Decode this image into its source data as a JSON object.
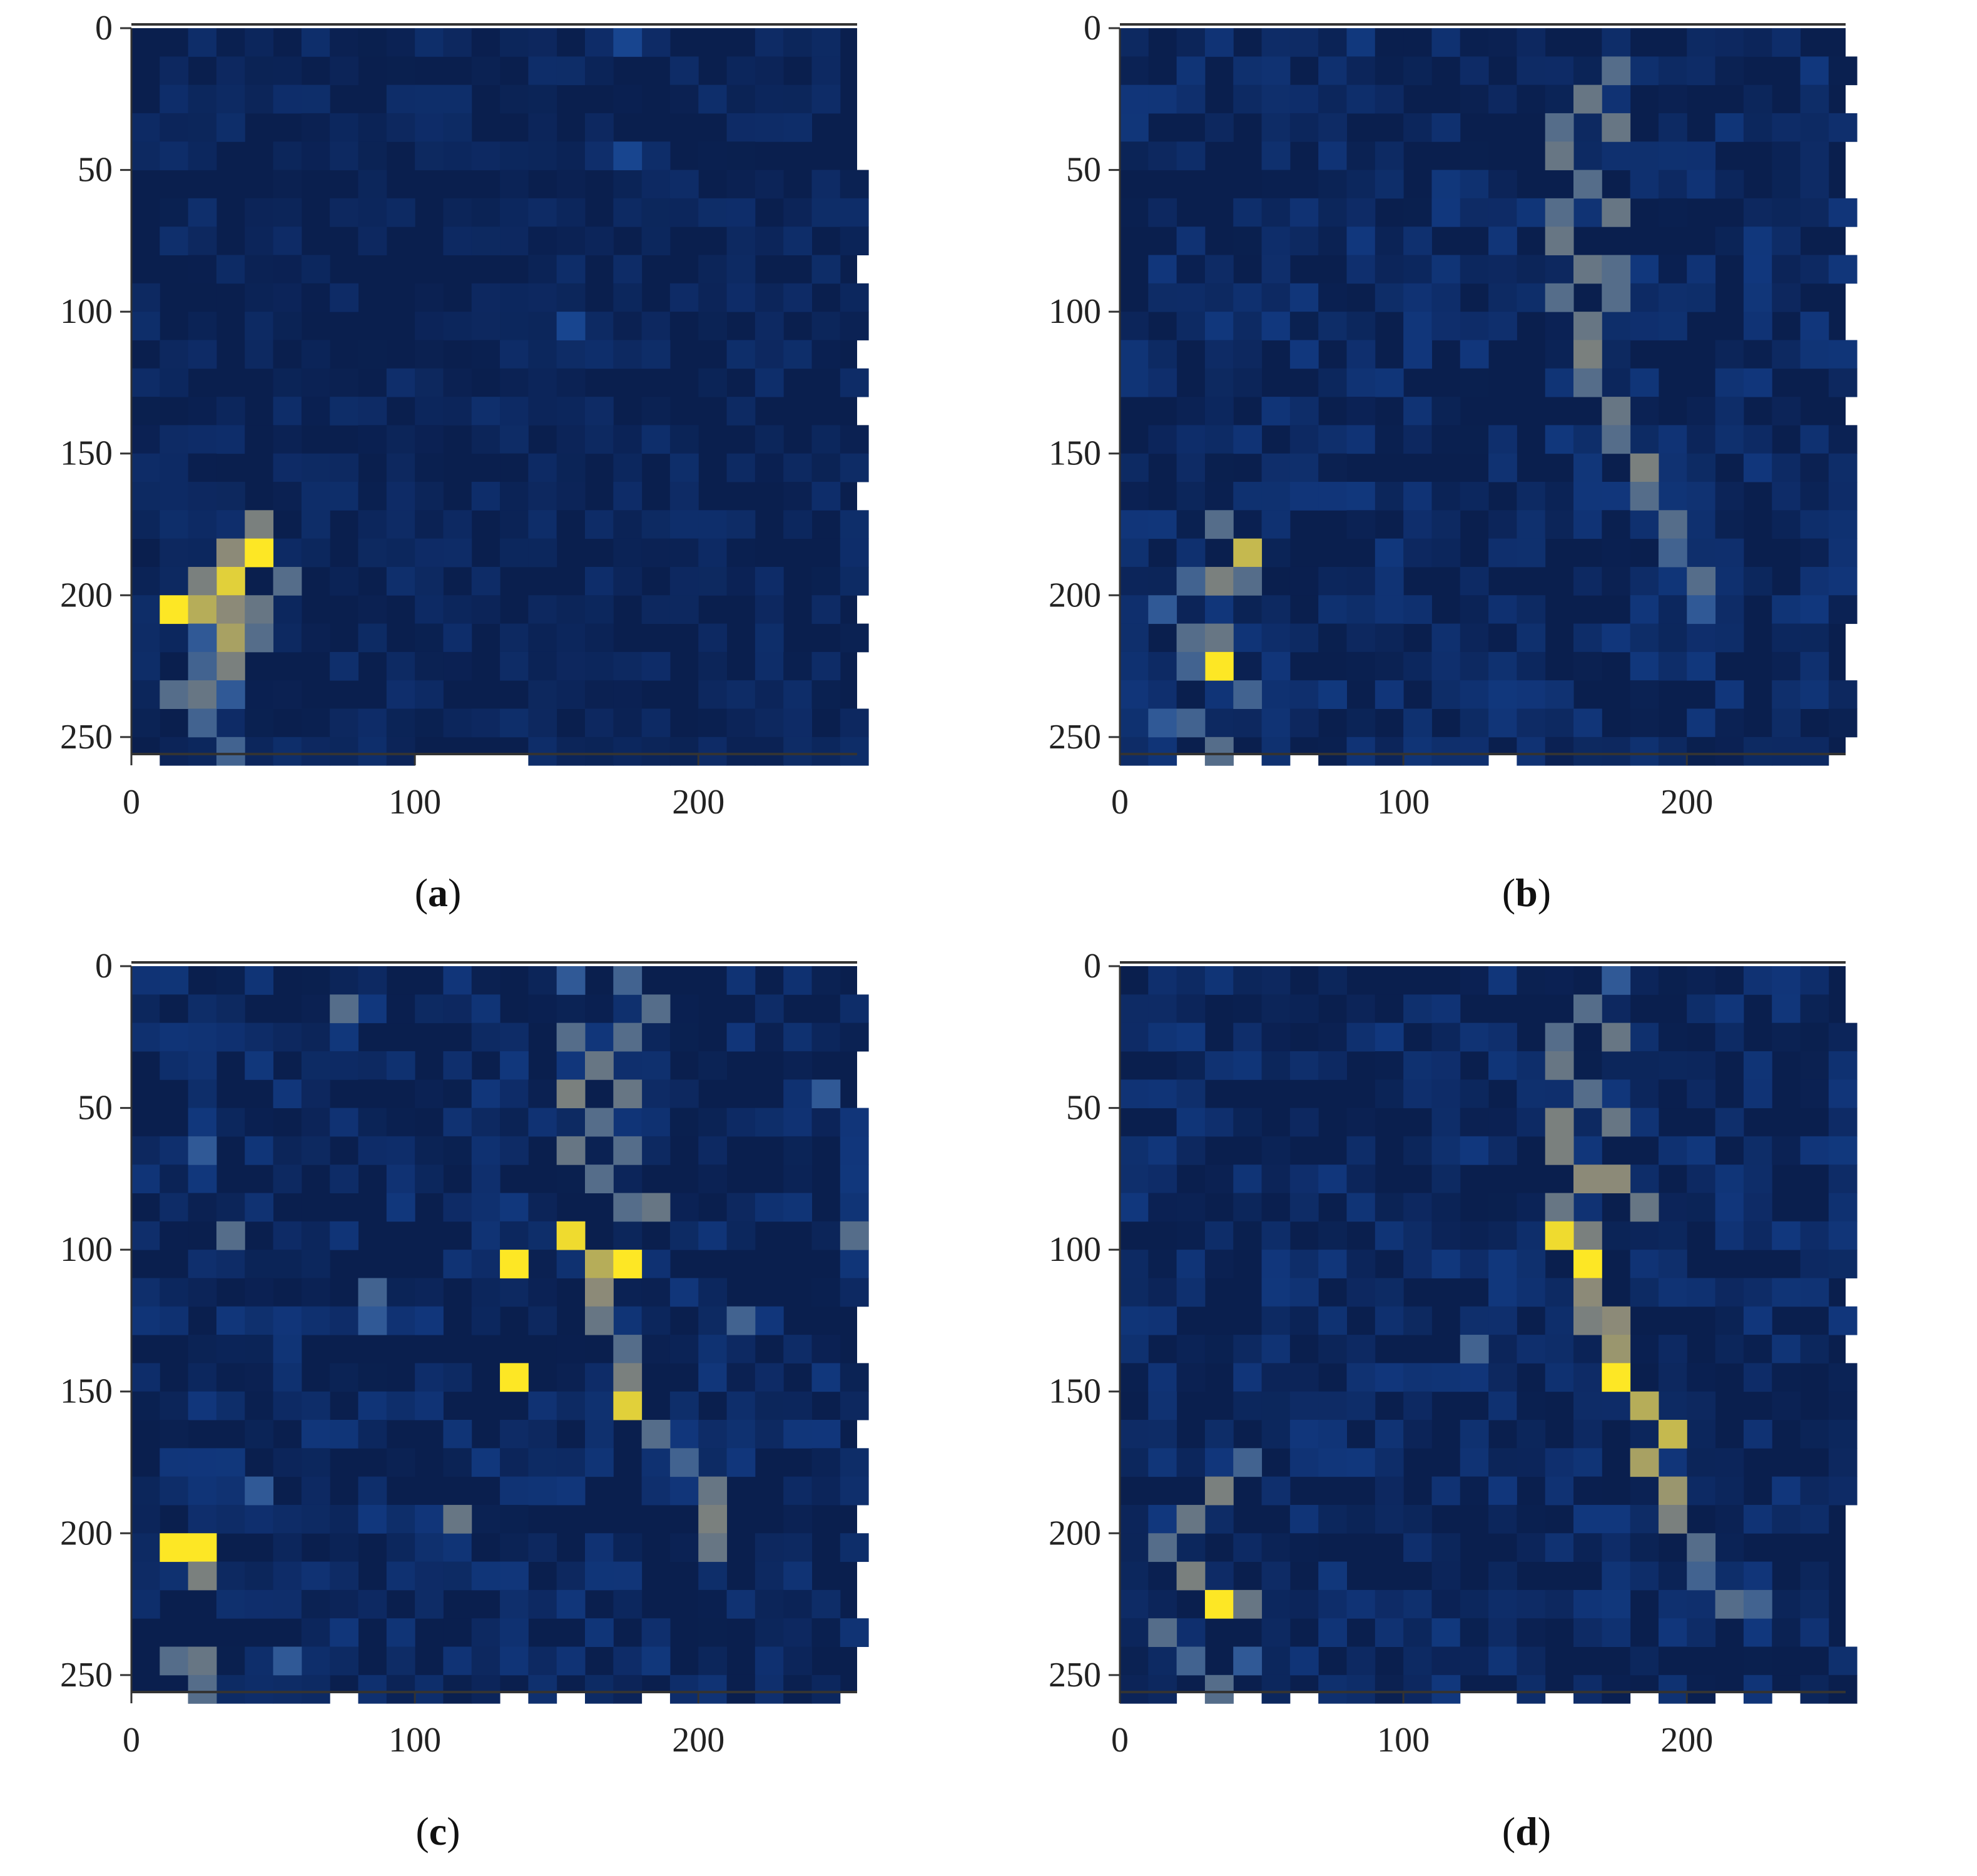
{
  "colors": {
    "background_dark": "#0a1f4e",
    "background_blue": "#123a82",
    "mid_blue": "#1d4f9c",
    "gray_yellow": "#8c8a78",
    "bright_yellow": "#fde725"
  },
  "chart_data": [
    {
      "type": "heatmap",
      "panel": "a",
      "xlim": [
        0,
        256
      ],
      "ylim": [
        256,
        0
      ],
      "xticks": [
        "0",
        "100",
        "200"
      ],
      "yticks": [
        "0",
        "50",
        "100",
        "150",
        "200",
        "250"
      ],
      "cell_size": 10,
      "hot_cells": [
        [
          40,
          170,
          0.55
        ],
        [
          30,
          180,
          0.6
        ],
        [
          40,
          180,
          1.0
        ],
        [
          50,
          190,
          0.45
        ],
        [
          30,
          190,
          0.9
        ],
        [
          20,
          190,
          0.55
        ],
        [
          10,
          200,
          1.0
        ],
        [
          20,
          200,
          0.75
        ],
        [
          30,
          200,
          0.6
        ],
        [
          40,
          200,
          0.5
        ],
        [
          30,
          210,
          0.7
        ],
        [
          40,
          210,
          0.45
        ],
        [
          20,
          210,
          0.35
        ],
        [
          30,
          220,
          0.55
        ],
        [
          20,
          220,
          0.4
        ],
        [
          10,
          230,
          0.45
        ],
        [
          20,
          230,
          0.5
        ],
        [
          30,
          230,
          0.35
        ],
        [
          20,
          240,
          0.4
        ],
        [
          30,
          250,
          0.4
        ],
        [
          170,
          0,
          0.15
        ],
        [
          170,
          40,
          0.15
        ],
        [
          150,
          100,
          0.15
        ]
      ]
    },
    {
      "type": "heatmap",
      "panel": "b",
      "xlim": [
        0,
        256
      ],
      "ylim": [
        256,
        0
      ],
      "xticks": [
        "0",
        "100",
        "200"
      ],
      "yticks": [
        "0",
        "50",
        "100",
        "150",
        "200",
        "250"
      ],
      "cell_size": 10,
      "hot_cells": [
        [
          170,
          10,
          0.45
        ],
        [
          160,
          20,
          0.5
        ],
        [
          150,
          30,
          0.45
        ],
        [
          170,
          30,
          0.5
        ],
        [
          150,
          40,
          0.5
        ],
        [
          160,
          50,
          0.45
        ],
        [
          150,
          60,
          0.45
        ],
        [
          170,
          60,
          0.5
        ],
        [
          150,
          70,
          0.5
        ],
        [
          160,
          80,
          0.5
        ],
        [
          170,
          80,
          0.45
        ],
        [
          150,
          90,
          0.45
        ],
        [
          160,
          100,
          0.5
        ],
        [
          170,
          90,
          0.45
        ],
        [
          160,
          110,
          0.55
        ],
        [
          160,
          120,
          0.45
        ],
        [
          170,
          130,
          0.5
        ],
        [
          170,
          140,
          0.45
        ],
        [
          180,
          150,
          0.55
        ],
        [
          180,
          160,
          0.45
        ],
        [
          190,
          170,
          0.45
        ],
        [
          190,
          180,
          0.4
        ],
        [
          200,
          190,
          0.45
        ],
        [
          200,
          200,
          0.35
        ],
        [
          30,
          170,
          0.45
        ],
        [
          40,
          180,
          0.8
        ],
        [
          30,
          190,
          0.55
        ],
        [
          20,
          190,
          0.4
        ],
        [
          40,
          190,
          0.45
        ],
        [
          10,
          200,
          0.35
        ],
        [
          20,
          210,
          0.45
        ],
        [
          30,
          210,
          0.5
        ],
        [
          30,
          220,
          1.0
        ],
        [
          20,
          220,
          0.4
        ],
        [
          40,
          230,
          0.4
        ],
        [
          10,
          240,
          0.35
        ],
        [
          20,
          240,
          0.4
        ],
        [
          30,
          250,
          0.45
        ]
      ]
    },
    {
      "type": "heatmap",
      "panel": "c",
      "xlim": [
        0,
        256
      ],
      "ylim": [
        256,
        0
      ],
      "xticks": [
        "0",
        "100",
        "200"
      ],
      "yticks": [
        "0",
        "50",
        "100",
        "150",
        "200",
        "250"
      ],
      "cell_size": 10,
      "hot_cells": [
        [
          150,
          0,
          0.35
        ],
        [
          170,
          0,
          0.4
        ],
        [
          180,
          10,
          0.45
        ],
        [
          150,
          20,
          0.45
        ],
        [
          170,
          20,
          0.45
        ],
        [
          160,
          30,
          0.5
        ],
        [
          150,
          40,
          0.55
        ],
        [
          170,
          40,
          0.5
        ],
        [
          160,
          50,
          0.45
        ],
        [
          150,
          60,
          0.5
        ],
        [
          170,
          60,
          0.45
        ],
        [
          160,
          70,
          0.45
        ],
        [
          180,
          80,
          0.5
        ],
        [
          170,
          80,
          0.45
        ],
        [
          150,
          90,
          0.95
        ],
        [
          160,
          100,
          0.75
        ],
        [
          170,
          100,
          1.0
        ],
        [
          160,
          110,
          0.6
        ],
        [
          160,
          120,
          0.5
        ],
        [
          170,
          130,
          0.45
        ],
        [
          170,
          140,
          0.55
        ],
        [
          170,
          150,
          0.9
        ],
        [
          180,
          160,
          0.45
        ],
        [
          190,
          170,
          0.4
        ],
        [
          200,
          180,
          0.5
        ],
        [
          200,
          190,
          0.55
        ],
        [
          200,
          200,
          0.5
        ],
        [
          130,
          100,
          1.0
        ],
        [
          130,
          140,
          1.0
        ],
        [
          70,
          10,
          0.45
        ],
        [
          80,
          110,
          0.4
        ],
        [
          80,
          120,
          0.35
        ],
        [
          110,
          190,
          0.5
        ],
        [
          30,
          90,
          0.45
        ],
        [
          20,
          60,
          0.35
        ],
        [
          250,
          90,
          0.45
        ],
        [
          210,
          120,
          0.4
        ],
        [
          240,
          40,
          0.35
        ],
        [
          10,
          200,
          1.0
        ],
        [
          20,
          200,
          1.0
        ],
        [
          20,
          210,
          0.55
        ],
        [
          10,
          240,
          0.45
        ],
        [
          20,
          240,
          0.5
        ],
        [
          20,
          250,
          0.45
        ],
        [
          50,
          240,
          0.35
        ],
        [
          40,
          180,
          0.35
        ]
      ]
    },
    {
      "type": "heatmap",
      "panel": "d",
      "xlim": [
        0,
        256
      ],
      "ylim": [
        256,
        0
      ],
      "xticks": [
        "0",
        "100",
        "200"
      ],
      "yticks": [
        "0",
        "50",
        "100",
        "150",
        "200",
        "250"
      ],
      "cell_size": 10,
      "hot_cells": [
        [
          170,
          0,
          0.35
        ],
        [
          160,
          10,
          0.45
        ],
        [
          150,
          20,
          0.45
        ],
        [
          170,
          20,
          0.5
        ],
        [
          150,
          30,
          0.5
        ],
        [
          160,
          40,
          0.45
        ],
        [
          150,
          50,
          0.55
        ],
        [
          170,
          50,
          0.5
        ],
        [
          150,
          60,
          0.55
        ],
        [
          160,
          70,
          0.6
        ],
        [
          170,
          70,
          0.6
        ],
        [
          180,
          80,
          0.5
        ],
        [
          150,
          80,
          0.5
        ],
        [
          160,
          90,
          0.55
        ],
        [
          150,
          90,
          0.95
        ],
        [
          160,
          100,
          1.0
        ],
        [
          160,
          110,
          0.6
        ],
        [
          170,
          120,
          0.6
        ],
        [
          160,
          120,
          0.55
        ],
        [
          170,
          130,
          0.65
        ],
        [
          170,
          140,
          1.0
        ],
        [
          180,
          150,
          0.75
        ],
        [
          190,
          160,
          0.8
        ],
        [
          180,
          170,
          0.7
        ],
        [
          190,
          180,
          0.65
        ],
        [
          190,
          190,
          0.55
        ],
        [
          200,
          200,
          0.45
        ],
        [
          200,
          210,
          0.4
        ],
        [
          210,
          220,
          0.45
        ],
        [
          220,
          220,
          0.4
        ],
        [
          120,
          130,
          0.4
        ],
        [
          30,
          180,
          0.55
        ],
        [
          40,
          170,
          0.4
        ],
        [
          20,
          190,
          0.5
        ],
        [
          10,
          200,
          0.45
        ],
        [
          20,
          210,
          0.55
        ],
        [
          30,
          220,
          1.0
        ],
        [
          40,
          220,
          0.5
        ],
        [
          10,
          230,
          0.45
        ],
        [
          20,
          240,
          0.4
        ],
        [
          30,
          250,
          0.45
        ],
        [
          40,
          240,
          0.35
        ]
      ]
    }
  ],
  "captions": [
    "a",
    "b",
    "c",
    "d"
  ]
}
